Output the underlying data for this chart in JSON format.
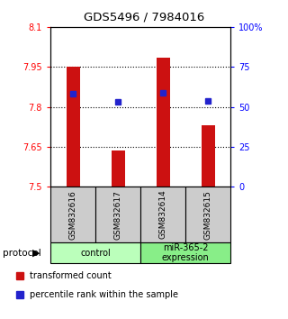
{
  "title": "GDS5496 / 7984016",
  "samples": [
    "GSM832616",
    "GSM832617",
    "GSM832614",
    "GSM832615"
  ],
  "bar_values": [
    7.95,
    7.635,
    7.985,
    7.73
  ],
  "bar_bottom": 7.5,
  "blue_values_pct": [
    58,
    53,
    59,
    54
  ],
  "ylim_left": [
    7.5,
    8.1
  ],
  "ylim_right": [
    0,
    100
  ],
  "yticks_left": [
    7.5,
    7.65,
    7.8,
    7.95,
    8.1
  ],
  "ytick_labels_left": [
    "7.5",
    "7.65",
    "7.8",
    "7.95",
    "8.1"
  ],
  "yticks_right": [
    0,
    25,
    50,
    75,
    100
  ],
  "ytick_labels_right": [
    "0",
    "25",
    "50",
    "75",
    "100%"
  ],
  "hlines": [
    7.65,
    7.8,
    7.95
  ],
  "bar_color": "#cc1111",
  "blue_color": "#2222cc",
  "groups": [
    {
      "label": "control",
      "indices": [
        0,
        1
      ],
      "color": "#bbffbb"
    },
    {
      "label": "miR-365-2\nexpression",
      "indices": [
        2,
        3
      ],
      "color": "#88ee88"
    }
  ],
  "protocol_label": "protocol",
  "legend_red": "transformed count",
  "legend_blue": "percentile rank within the sample",
  "sample_box_color": "#cccccc",
  "bar_width": 0.3
}
